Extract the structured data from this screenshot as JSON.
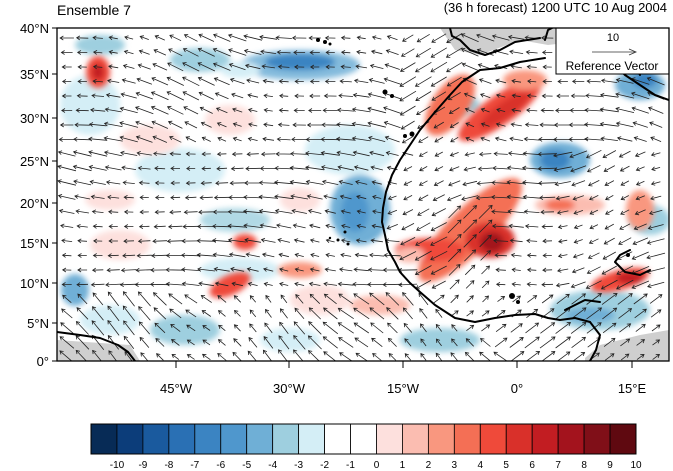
{
  "header": {
    "left_title": "Ensemble 7",
    "right_title": "(36 h forecast) 1200 UTC 10 Aug 2004"
  },
  "lat_labels": [
    "40°N",
    "35°N",
    "30°N",
    "25°N",
    "20°N",
    "15°N",
    "10°N",
    "5°N",
    "0°"
  ],
  "lon_labels": [
    "45°W",
    "30°W",
    "15°W",
    "0°",
    "15°E"
  ],
  "reference_vector": {
    "magnitude": "10",
    "label": "Reference Vector"
  },
  "colorbar": {
    "labels": [
      "-10",
      "-9",
      "-8",
      "-7",
      "-6",
      "-5",
      "-4",
      "-3",
      "-2",
      "-1",
      "0",
      "1",
      "2",
      "3",
      "4",
      "5",
      "6",
      "7",
      "8",
      "9",
      "10"
    ],
    "colors": [
      "#072b56",
      "#0c3d7a",
      "#1a5a9e",
      "#2a70b4",
      "#3b84c2",
      "#4f97cd",
      "#6fafd6",
      "#9ecfdf",
      "#d4eef6",
      "#ffffff",
      "#ffffff",
      "#fde0dd",
      "#fbbdb1",
      "#f9977f",
      "#f46f55",
      "#ef4a3a",
      "#d9302a",
      "#c21d22",
      "#a3131d",
      "#800f18",
      "#5f0910"
    ]
  },
  "colors": {
    "land_gray": "#cfcfcf",
    "coast": "#000000",
    "arrow": "#222222"
  }
}
